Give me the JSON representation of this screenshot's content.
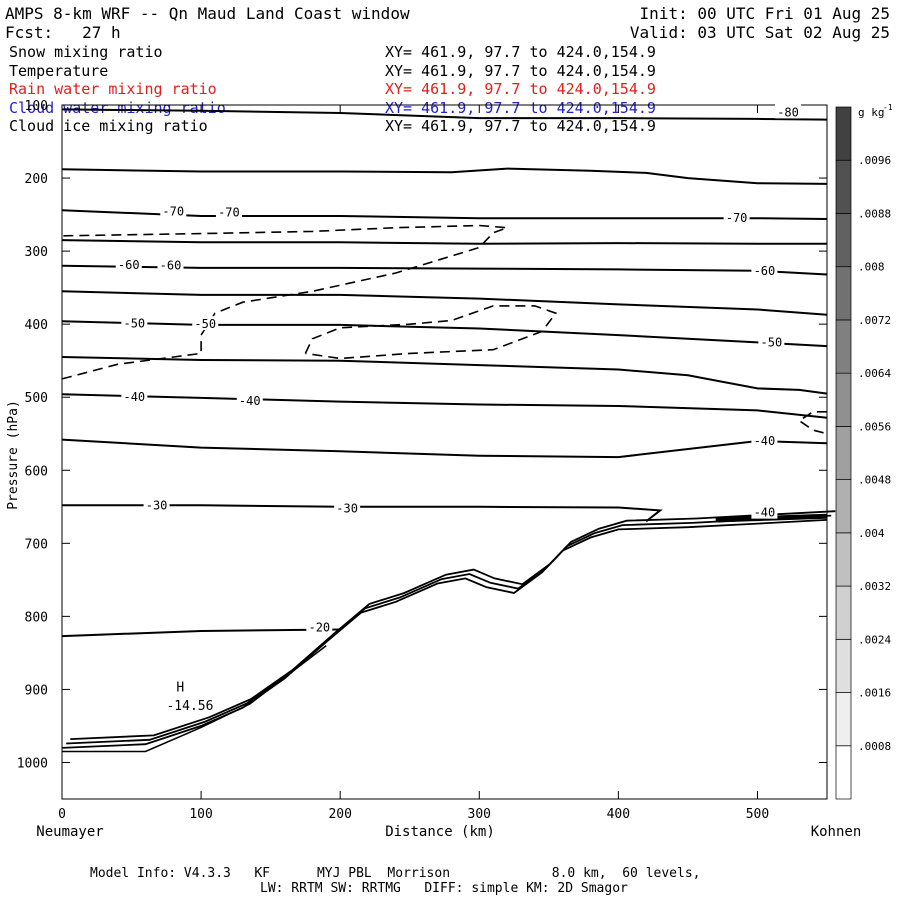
{
  "header": {
    "title": "AMPS 8-km WRF -- Qn Maud Land Coast window",
    "init": "Init: 00 UTC Fri 01 Aug 25",
    "fcst": "Fcst:   27 h",
    "valid": "Valid: 03 UTC Sat 02 Aug 25"
  },
  "fields": [
    {
      "name": "Snow mixing ratio",
      "xy": "XY= 461.9, 97.7 to 424.0,154.9",
      "color": "#000000"
    },
    {
      "name": "Temperature",
      "xy": "XY= 461.9, 97.7 to 424.0,154.9",
      "color": "#000000"
    },
    {
      "name": "Rain water mixing ratio",
      "xy": "XY= 461.9, 97.7 to 424.0,154.9",
      "color": "#e0201e"
    },
    {
      "name": "Cloud water mixing ratio",
      "xy": "XY= 461.9, 97.7 to 424.0,154.9",
      "color": "#2222cc"
    },
    {
      "name": "Cloud ice mixing ratio",
      "xy": "XY= 461.9, 97.7 to 424.0,154.9",
      "color": "#000000"
    }
  ],
  "footer": {
    "line1": "Model Info: V4.3.3   KF      MYJ PBL  Morrison             8.0 km,  60 levels,",
    "line2": "LW: RRTM SW: RRTMG   DIFF: simple KM: 2D Smagor"
  },
  "chart_data": {
    "type": "line",
    "title": "",
    "xlabel": "Distance (km)",
    "ylabel": "Pressure (hPa)",
    "x_left_label": "Neumayer",
    "x_right_label": "Kohnen",
    "xlim": [
      0,
      550
    ],
    "ylim": [
      1050,
      100
    ],
    "x_ticks": [
      0,
      100,
      200,
      300,
      400,
      500
    ],
    "y_ticks": [
      100,
      200,
      300,
      400,
      500,
      600,
      700,
      800,
      900,
      1000
    ],
    "colorbar": {
      "unit": "g kg",
      "unit_exp": "-1",
      "levels": [
        "0",
        ".0008",
        ".0016",
        ".0024",
        ".0032",
        ".004",
        ".0048",
        ".0056",
        ".0064",
        ".0072",
        ".008",
        ".0088",
        ".0096",
        ""
      ],
      "labels": [
        ".0008",
        ".0016",
        ".0024",
        ".0032",
        ".004",
        ".0048",
        ".0056",
        ".0064",
        ".0072",
        ".008",
        ".0088",
        ".0096"
      ]
    },
    "series": [
      {
        "label": "-80",
        "points": [
          [
            0,
            106
          ],
          [
            100,
            108
          ],
          [
            200,
            111
          ],
          [
            300,
            118
          ],
          [
            400,
            118
          ],
          [
            500,
            119
          ],
          [
            550,
            120
          ]
        ]
      },
      {
        "label": "",
        "points": [
          [
            0,
            188
          ],
          [
            100,
            191
          ],
          [
            200,
            191
          ],
          [
            280,
            192
          ],
          [
            320,
            187
          ],
          [
            380,
            190
          ],
          [
            420,
            193
          ],
          [
            450,
            200
          ],
          [
            500,
            207
          ],
          [
            550,
            208
          ]
        ]
      },
      {
        "label": "-70",
        "points": [
          [
            0,
            244
          ],
          [
            100,
            252
          ],
          [
            200,
            252
          ],
          [
            300,
            255
          ],
          [
            400,
            255
          ],
          [
            500,
            255
          ],
          [
            550,
            256
          ]
        ]
      },
      {
        "label": "",
        "points": [
          [
            0,
            285
          ],
          [
            100,
            288
          ],
          [
            200,
            288
          ],
          [
            300,
            290
          ],
          [
            400,
            289
          ],
          [
            500,
            290
          ],
          [
            550,
            290
          ]
        ]
      },
      {
        "label": "-60",
        "points": [
          [
            0,
            320
          ],
          [
            100,
            323
          ],
          [
            200,
            323
          ],
          [
            300,
            324
          ],
          [
            400,
            325
          ],
          [
            500,
            327
          ],
          [
            550,
            332
          ]
        ]
      },
      {
        "label": "",
        "points": [
          [
            0,
            355
          ],
          [
            100,
            360
          ],
          [
            200,
            360
          ],
          [
            300,
            365
          ],
          [
            400,
            373
          ],
          [
            500,
            380
          ],
          [
            550,
            387
          ]
        ]
      },
      {
        "label": "-50",
        "points": [
          [
            0,
            396
          ],
          [
            100,
            401
          ],
          [
            200,
            401
          ],
          [
            300,
            406
          ],
          [
            400,
            415
          ],
          [
            500,
            425
          ],
          [
            550,
            430
          ]
        ]
      },
      {
        "label": "",
        "points": [
          [
            0,
            445
          ],
          [
            100,
            449
          ],
          [
            200,
            450
          ],
          [
            300,
            456
          ],
          [
            400,
            462
          ],
          [
            450,
            470
          ],
          [
            500,
            488
          ],
          [
            530,
            490
          ],
          [
            550,
            495
          ]
        ]
      },
      {
        "label": "-40",
        "points": [
          [
            0,
            496
          ],
          [
            100,
            501
          ],
          [
            200,
            506
          ],
          [
            300,
            510
          ],
          [
            400,
            512
          ],
          [
            500,
            518
          ],
          [
            550,
            528
          ]
        ]
      },
      {
        "label": "",
        "points": [
          [
            0,
            558
          ],
          [
            100,
            569
          ],
          [
            200,
            574
          ],
          [
            300,
            580
          ],
          [
            400,
            582
          ],
          [
            500,
            560
          ],
          [
            550,
            563
          ]
        ]
      },
      {
        "label": "-30",
        "points": [
          [
            0,
            648
          ],
          [
            100,
            648
          ],
          [
            200,
            650
          ],
          [
            300,
            650
          ],
          [
            400,
            651
          ],
          [
            430,
            655
          ],
          [
            420,
            670
          ]
        ]
      },
      {
        "label": "-20",
        "points": [
          [
            0,
            827
          ],
          [
            100,
            820
          ],
          [
            200,
            818
          ]
        ]
      }
    ],
    "annotations": [
      {
        "text": "H",
        "x": 85,
        "y": 903
      },
      {
        "text": "-14.56",
        "x": 92,
        "y": 928
      }
    ]
  }
}
